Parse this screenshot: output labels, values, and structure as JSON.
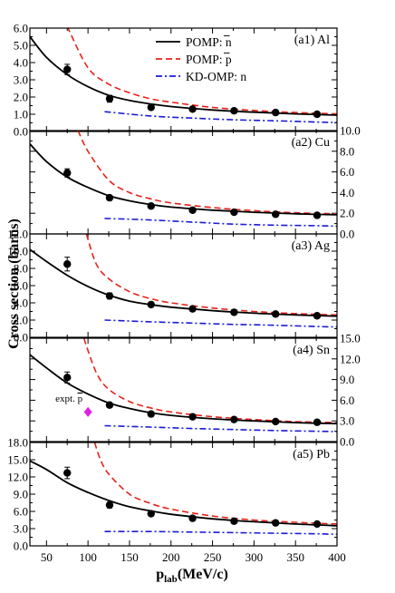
{
  "chart_data": {
    "type": "line",
    "ylabel": "Cross section (barns)",
    "xlabel": "p",
    "xlabel_sub": "lab",
    "xlabel_unit": "(MeV/c)",
    "xlim": [
      30,
      400
    ],
    "x_ticks": [
      50,
      100,
      150,
      200,
      250,
      300,
      350,
      400
    ],
    "x_tick_labels": [
      "50",
      "100",
      "150",
      "200",
      "250",
      "300",
      "350",
      "400"
    ],
    "legend": {
      "placement": "top-right of panel a1",
      "entries": [
        {
          "label": "POMP: n",
          "bar_over": "n",
          "color": "#000000",
          "dash": "solid"
        },
        {
          "label": "POMP: p",
          "bar_over": "p",
          "color": "#e8231a",
          "dash": "dashed"
        },
        {
          "label": "KD-OMP: n",
          "bar_over": "",
          "color": "#1a1adb",
          "dash": "dashdot"
        }
      ]
    },
    "series_styles": {
      "pomp_nbar": {
        "color": "#000000",
        "dash": "solid"
      },
      "pomp_pbar": {
        "color": "#e8231a",
        "dash": "dashed"
      },
      "kd_omp_n": {
        "color": "#1a1adb",
        "dash": "dashdot"
      },
      "data_points": {
        "color": "#000000",
        "marker": "circle"
      },
      "expt_pbar": {
        "color": "#e11fe1",
        "marker": "diamond"
      }
    },
    "panels": [
      {
        "label": "(a1) Al",
        "ylim": [
          0,
          6
        ],
        "y_axis_side": "left",
        "y_ticks": [
          0,
          1,
          2,
          3,
          4,
          5,
          6
        ],
        "y_tick_labels": [
          "0.0",
          "1.0",
          "2.0",
          "3.0",
          "4.0",
          "5.0",
          "6.0"
        ],
        "pomp_nbar": {
          "x": [
            30,
            50,
            75,
            100,
            125,
            150,
            175,
            200,
            250,
            300,
            350,
            400
          ],
          "y": [
            5.5,
            4.3,
            3.3,
            2.6,
            2.1,
            1.8,
            1.6,
            1.45,
            1.25,
            1.12,
            1.02,
            0.95
          ]
        },
        "pomp_pbar": {
          "x": [
            75,
            100,
            125,
            150,
            175,
            200,
            250,
            300,
            350,
            400
          ],
          "y": [
            6.1,
            3.7,
            2.75,
            2.25,
            1.9,
            1.7,
            1.4,
            1.22,
            1.1,
            1.02
          ]
        },
        "kd_omp_n": {
          "x": [
            120,
            175,
            225,
            275,
            325,
            375,
            400
          ],
          "y": [
            1.15,
            0.9,
            0.78,
            0.68,
            0.62,
            0.55,
            0.52
          ]
        },
        "data": {
          "x": [
            75,
            126,
            176,
            226,
            276,
            326,
            376
          ],
          "y": [
            3.6,
            1.9,
            1.4,
            1.3,
            1.2,
            1.1,
            1.0
          ],
          "err": [
            0.3,
            0.2,
            0.12,
            0.1,
            0.1,
            0.1,
            0.1
          ]
        }
      },
      {
        "label": "(a2) Cu",
        "ylim": [
          0,
          10
        ],
        "y_axis_side": "right",
        "y_ticks": [
          0,
          2,
          4,
          6,
          8,
          10
        ],
        "y_tick_labels": [
          "0.0",
          "2.0",
          "4.0",
          "6.0",
          "8.0",
          "10.0"
        ],
        "pomp_nbar": {
          "x": [
            30,
            50,
            75,
            100,
            125,
            150,
            175,
            200,
            250,
            300,
            350,
            400
          ],
          "y": [
            8.7,
            7.0,
            5.5,
            4.5,
            3.7,
            3.2,
            2.85,
            2.6,
            2.3,
            2.1,
            1.95,
            1.85
          ]
        },
        "pomp_pbar": {
          "x": [
            88,
            100,
            125,
            150,
            175,
            200,
            250,
            300,
            350,
            400
          ],
          "y": [
            10.0,
            8.0,
            5.2,
            4.0,
            3.4,
            3.0,
            2.55,
            2.25,
            2.05,
            1.95
          ]
        },
        "kd_omp_n": {
          "x": [
            120,
            175,
            225,
            275,
            325,
            375,
            400
          ],
          "y": [
            1.5,
            1.35,
            1.15,
            0.95,
            0.85,
            0.8,
            0.75
          ]
        },
        "data": {
          "x": [
            75,
            126,
            176,
            226,
            276,
            326,
            376
          ],
          "y": [
            5.9,
            3.5,
            2.7,
            2.3,
            2.1,
            1.9,
            1.8
          ],
          "err": [
            0.4,
            0.2,
            0.15,
            0.12,
            0.1,
            0.1,
            0.1
          ]
        }
      },
      {
        "label": "(a3) Ag",
        "ylim": [
          0,
          12
        ],
        "y_axis_side": "left",
        "y_ticks": [
          0,
          2,
          4,
          6,
          8,
          10,
          12
        ],
        "y_tick_labels": [
          "0.0",
          "2.0",
          "4.0",
          "6.0",
          "8.0",
          "10.0",
          "12.0"
        ],
        "pomp_nbar": {
          "x": [
            30,
            50,
            75,
            100,
            125,
            150,
            175,
            200,
            250,
            300,
            350,
            400
          ],
          "y": [
            10.2,
            8.8,
            7.2,
            5.9,
            4.9,
            4.2,
            3.8,
            3.5,
            3.1,
            2.8,
            2.6,
            2.45
          ]
        },
        "pomp_pbar": {
          "x": [
            98,
            110,
            125,
            150,
            175,
            200,
            250,
            300,
            350,
            400
          ],
          "y": [
            12.0,
            8.5,
            6.8,
            5.3,
            4.5,
            4.0,
            3.4,
            3.0,
            2.75,
            2.6
          ]
        },
        "kd_omp_n": {
          "x": [
            120,
            175,
            225,
            275,
            325,
            375,
            400
          ],
          "y": [
            2.0,
            1.8,
            1.65,
            1.5,
            1.4,
            1.25,
            1.2
          ]
        },
        "data": {
          "x": [
            75,
            126,
            176,
            226,
            276,
            326,
            376
          ],
          "y": [
            8.5,
            4.8,
            3.8,
            3.3,
            2.9,
            2.7,
            2.5
          ],
          "err": [
            0.8,
            0.35,
            0.2,
            0.15,
            0.12,
            0.1,
            0.1
          ]
        }
      },
      {
        "label": "(a4) Sn",
        "ylim": [
          0,
          15
        ],
        "y_axis_side": "right",
        "y_ticks": [
          0,
          3,
          6,
          9,
          12,
          15
        ],
        "y_tick_labels": [
          "0.0",
          "3.0",
          "6.0",
          "9.0",
          "12.0",
          "15.0"
        ],
        "pomp_nbar": {
          "x": [
            30,
            50,
            75,
            100,
            125,
            150,
            175,
            200,
            250,
            300,
            350,
            400
          ],
          "y": [
            12.6,
            10.7,
            8.5,
            6.9,
            5.6,
            4.8,
            4.2,
            3.8,
            3.3,
            3.0,
            2.75,
            2.6
          ]
        },
        "pomp_pbar": {
          "x": [
            95,
            110,
            125,
            150,
            175,
            200,
            250,
            300,
            350,
            400
          ],
          "y": [
            15.0,
            10.0,
            7.6,
            5.8,
            4.9,
            4.3,
            3.6,
            3.2,
            2.9,
            2.75
          ]
        },
        "kd_omp_n": {
          "x": [
            120,
            175,
            225,
            275,
            325,
            375,
            400
          ],
          "y": [
            2.3,
            2.1,
            1.9,
            1.75,
            1.6,
            1.5,
            1.45
          ]
        },
        "data": {
          "x": [
            75,
            126,
            176,
            226,
            276,
            326,
            376
          ],
          "y": [
            9.3,
            5.3,
            4.0,
            3.6,
            3.2,
            2.9,
            2.8
          ],
          "err": [
            0.8,
            0.35,
            0.2,
            0.15,
            0.12,
            0.1,
            0.1
          ]
        },
        "expt_pbar": {
          "x": [
            100
          ],
          "y": [
            4.3
          ],
          "err": [
            0.6
          ]
        },
        "annotation": {
          "text": "expt. p",
          "bar_over": "p"
        }
      },
      {
        "label": "(a5) Pb",
        "ylim": [
          0,
          18
        ],
        "y_axis_side": "left",
        "y_ticks": [
          0,
          3,
          6,
          9,
          12,
          15,
          18
        ],
        "y_tick_labels": [
          "0.0",
          "3.0",
          "6.0",
          "9.0",
          "12.0",
          "15.0",
          "18.0"
        ],
        "pomp_nbar": {
          "x": [
            30,
            50,
            75,
            100,
            125,
            150,
            175,
            200,
            250,
            300,
            350,
            400
          ],
          "y": [
            14.8,
            13.3,
            11.0,
            9.3,
            7.9,
            6.8,
            6.1,
            5.5,
            4.7,
            4.2,
            3.8,
            3.5
          ]
        },
        "pomp_pbar": {
          "x": [
            108,
            115,
            125,
            150,
            175,
            200,
            250,
            300,
            350,
            400
          ],
          "y": [
            18.0,
            15.0,
            12.5,
            9.0,
            7.4,
            6.4,
            5.2,
            4.5,
            4.1,
            3.8
          ]
        },
        "kd_omp_n": {
          "x": [
            120,
            175,
            225,
            275,
            325,
            375,
            400
          ],
          "y": [
            2.5,
            2.5,
            2.4,
            2.3,
            2.2,
            2.1,
            2.0
          ]
        },
        "data": {
          "x": [
            75,
            126,
            176,
            226,
            276,
            326,
            376
          ],
          "y": [
            12.7,
            7.1,
            5.6,
            4.8,
            4.3,
            4.0,
            3.8
          ],
          "err": [
            1.0,
            0.5,
            0.3,
            0.2,
            0.15,
            0.15,
            0.15
          ]
        }
      }
    ]
  }
}
